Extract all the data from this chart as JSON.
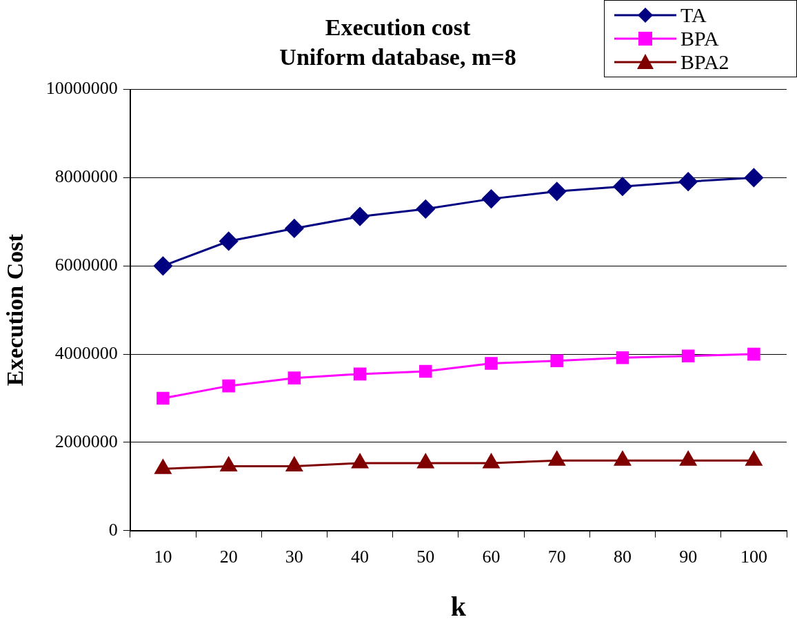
{
  "chart_data": {
    "type": "line",
    "title": "Execution cost",
    "subtitle": "Uniform database, m=8",
    "xlabel": "k",
    "ylabel": "Execution Cost",
    "categories": [
      "10",
      "20",
      "30",
      "40",
      "50",
      "60",
      "70",
      "80",
      "90",
      "100"
    ],
    "series": [
      {
        "name": "TA",
        "color": "#000080",
        "marker": "diamond",
        "values": [
          6000000,
          6560000,
          6850000,
          7120000,
          7290000,
          7520000,
          7690000,
          7800000,
          7910000,
          8000000
        ]
      },
      {
        "name": "BPA",
        "color": "#ff00ff",
        "marker": "square",
        "values": [
          3000000,
          3280000,
          3460000,
          3550000,
          3610000,
          3790000,
          3850000,
          3920000,
          3960000,
          4000000
        ]
      },
      {
        "name": "BPA2",
        "color": "#800000",
        "marker": "triangle",
        "values": [
          1400000,
          1460000,
          1460000,
          1530000,
          1530000,
          1530000,
          1590000,
          1590000,
          1590000,
          1590000
        ]
      }
    ],
    "ylim": [
      0,
      10000000
    ],
    "yticks": [
      0,
      2000000,
      4000000,
      6000000,
      8000000,
      10000000
    ],
    "grid": "y",
    "legend": "top right",
    "line_style": "solid"
  }
}
